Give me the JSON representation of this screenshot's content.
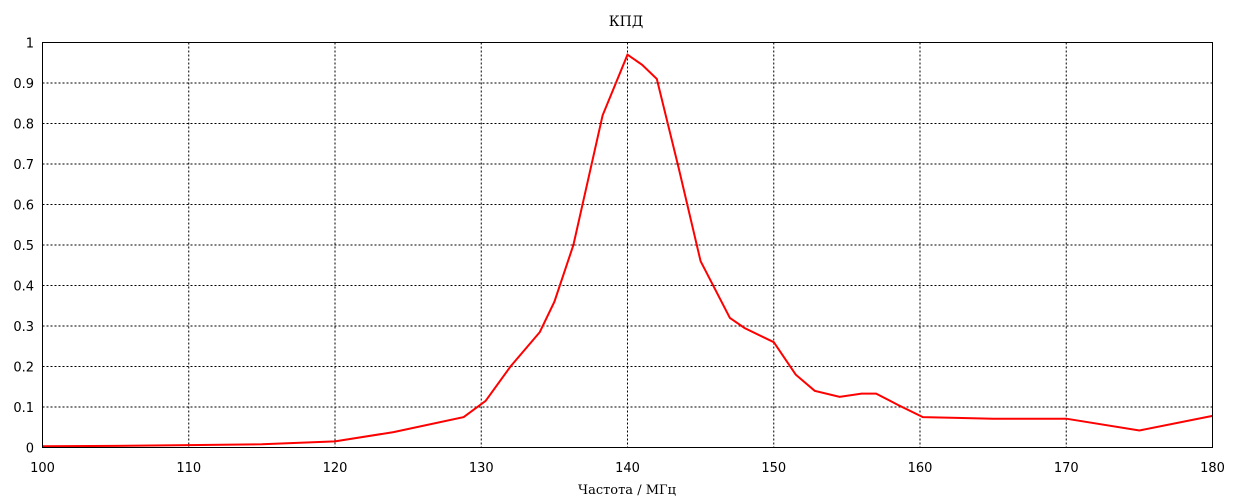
{
  "chart_data": {
    "type": "line",
    "title": "КПД",
    "xlabel": "Частота / МГц",
    "ylabel": "",
    "xlim": [
      100,
      180
    ],
    "ylim": [
      0,
      1
    ],
    "xticks": [
      100,
      110,
      120,
      130,
      140,
      150,
      160,
      170,
      180
    ],
    "yticks": [
      0,
      0.1,
      0.2,
      0.3,
      0.4,
      0.5,
      0.6,
      0.7,
      0.8,
      0.9,
      1
    ],
    "ytick_labels": [
      "0",
      "0.1",
      "0.2",
      "0.3",
      "0.4",
      "0.5",
      "0.6",
      "0.7",
      "0.8",
      "0.9",
      "1"
    ],
    "grid": true,
    "series": [
      {
        "color": "#ff0000",
        "x": [
          100,
          105,
          110,
          115,
          120,
          124,
          128.8,
          130.3,
          132,
          134,
          135,
          136.3,
          138.3,
          140,
          141,
          142,
          143.5,
          145,
          147,
          148,
          150,
          151.5,
          152.8,
          154.5,
          156,
          157,
          158.5,
          160.2,
          162.5,
          165,
          170,
          175,
          180
        ],
        "y": [
          0.003,
          0.004,
          0.006,
          0.008,
          0.015,
          0.038,
          0.075,
          0.115,
          0.2,
          0.285,
          0.36,
          0.5,
          0.82,
          0.97,
          0.945,
          0.91,
          0.69,
          0.46,
          0.32,
          0.295,
          0.26,
          0.18,
          0.14,
          0.125,
          0.133,
          0.133,
          0.105,
          0.075,
          0.073,
          0.071,
          0.071,
          0.042,
          0.078
        ]
      }
    ]
  }
}
